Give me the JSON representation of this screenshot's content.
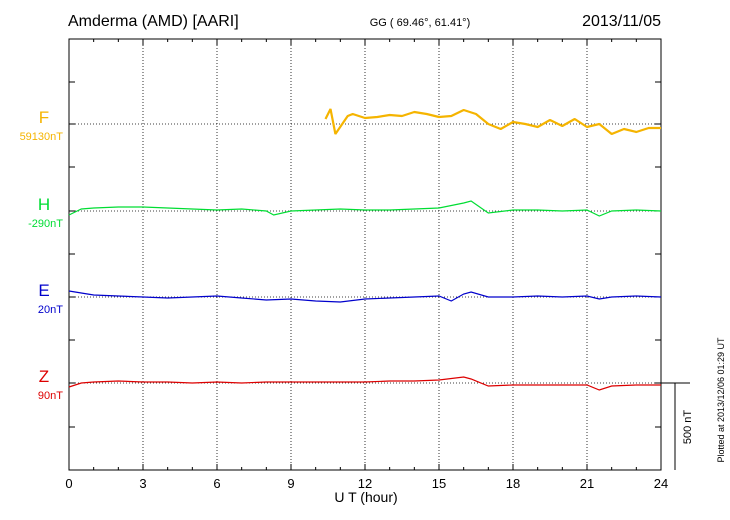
{
  "header": {
    "station": "Amderma (AMD)  [AARI]",
    "coords": "GG ( 69.46°,  61.41°)",
    "date": "2013/11/05"
  },
  "footer": {
    "plotted": "Plotted at 2013/12/06 01:29 UT"
  },
  "chart_data": {
    "type": "line",
    "title": "Amderma (AMD)  [AARI]",
    "xlabel": "U T (hour)",
    "ylabel": "",
    "xlim": [
      0,
      24
    ],
    "x_ticks": [
      "0",
      "3",
      "6",
      "9",
      "12",
      "15",
      "18",
      "21",
      "24"
    ],
    "grid": true,
    "scale_bar": "500 nT",
    "colors": {
      "F": "#f5b400",
      "H": "#00dd33",
      "E": "#0000cc",
      "Z": "#dd0000"
    },
    "series": [
      {
        "name": "F",
        "baseline_label": "59130nT",
        "x": [
          10.4,
          10.6,
          10.8,
          11.3,
          11.5,
          12.0,
          12.5,
          13.0,
          13.5,
          14.0,
          14.5,
          15.0,
          15.5,
          16.0,
          16.5,
          17.0,
          17.5,
          18.0,
          18.5,
          19.0,
          19.5,
          20.0,
          20.5,
          21.0,
          21.5,
          22.0,
          22.5,
          23.0,
          23.5,
          24.0
        ],
        "y": [
          5,
          15,
          -10,
          8,
          10,
          6,
          7,
          9,
          8,
          12,
          10,
          7,
          8,
          14,
          10,
          0,
          -5,
          2,
          0,
          -3,
          4,
          -2,
          5,
          -3,
          0,
          -10,
          -5,
          -8,
          -4,
          -4
        ]
      },
      {
        "name": "H",
        "baseline_label": "-290nT",
        "x": [
          0,
          0.5,
          1,
          2,
          3,
          4,
          5,
          6,
          7,
          8,
          8.3,
          9,
          10,
          11,
          12,
          13,
          14,
          15,
          16,
          16.3,
          17,
          18,
          19,
          20,
          21,
          21.5,
          22,
          23,
          24
        ],
        "y": [
          -4,
          2,
          3,
          4,
          4,
          3,
          2,
          1,
          2,
          0,
          -4,
          0,
          1,
          2,
          1,
          1,
          2,
          3,
          8,
          10,
          -2,
          1,
          1,
          0,
          1,
          -5,
          0,
          1,
          0
        ]
      },
      {
        "name": "E",
        "baseline_label": "20nT",
        "x": [
          0,
          0.5,
          1,
          2,
          3,
          4,
          5,
          6,
          7,
          8,
          9,
          10,
          11,
          12,
          13,
          14,
          15,
          15.5,
          16,
          16.3,
          17,
          18,
          19,
          20,
          21,
          21.5,
          22,
          23,
          24
        ],
        "y": [
          6,
          4,
          2,
          1,
          0,
          -1,
          0,
          1,
          -1,
          -3,
          -2,
          -4,
          -5,
          -2,
          -1,
          0,
          1,
          -4,
          3,
          5,
          0,
          0,
          1,
          0,
          1,
          -2,
          0,
          1,
          0
        ]
      },
      {
        "name": "Z",
        "baseline_label": "90nT",
        "x": [
          0,
          0.5,
          1,
          2,
          3,
          4,
          5,
          6,
          7,
          8,
          9,
          10,
          11,
          12,
          13,
          14,
          15,
          16,
          16.3,
          17,
          18,
          19,
          20,
          21,
          21.5,
          22,
          23,
          24
        ],
        "y": [
          -4,
          0,
          1,
          2,
          1,
          1,
          0,
          1,
          0,
          1,
          1,
          1,
          1,
          1,
          2,
          2,
          3,
          6,
          4,
          -3,
          -2,
          -2,
          -2,
          -2,
          -7,
          -3,
          -2,
          -2
        ]
      }
    ]
  }
}
